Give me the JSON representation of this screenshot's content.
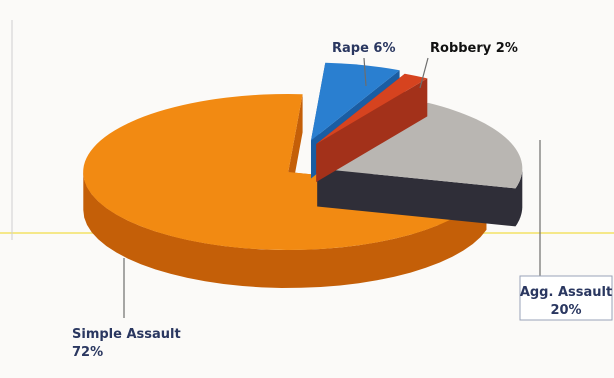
{
  "chart_data": {
    "type": "pie",
    "style": "3d-exploded",
    "slices": [
      {
        "label": "Rape",
        "value": 6,
        "label_text": "Rape 6%",
        "color": "#2a7fd0",
        "side_color": "#1a5da3"
      },
      {
        "label": "Robbery",
        "value": 2,
        "label_text": "Robbery 2%",
        "color": "#d6431f",
        "side_color": "#a3311a"
      },
      {
        "label": "Agg. Assault",
        "value": 20,
        "label_line1": "Agg. Assault",
        "label_line2": "20%",
        "color": "#b9b6b2",
        "side_color": "#2f2e38"
      },
      {
        "label": "Simple Assault",
        "value": 72,
        "label_line1": "Simple Assault",
        "label_line2": "72%",
        "color": "#f28a12",
        "side_color": "#c45f08"
      }
    ],
    "colors": {
      "background": "#fbfaf8",
      "leader_line": "#6d6d6d",
      "label_box_border": "#9aa3b8",
      "guide_line": "#f5e88a"
    }
  }
}
